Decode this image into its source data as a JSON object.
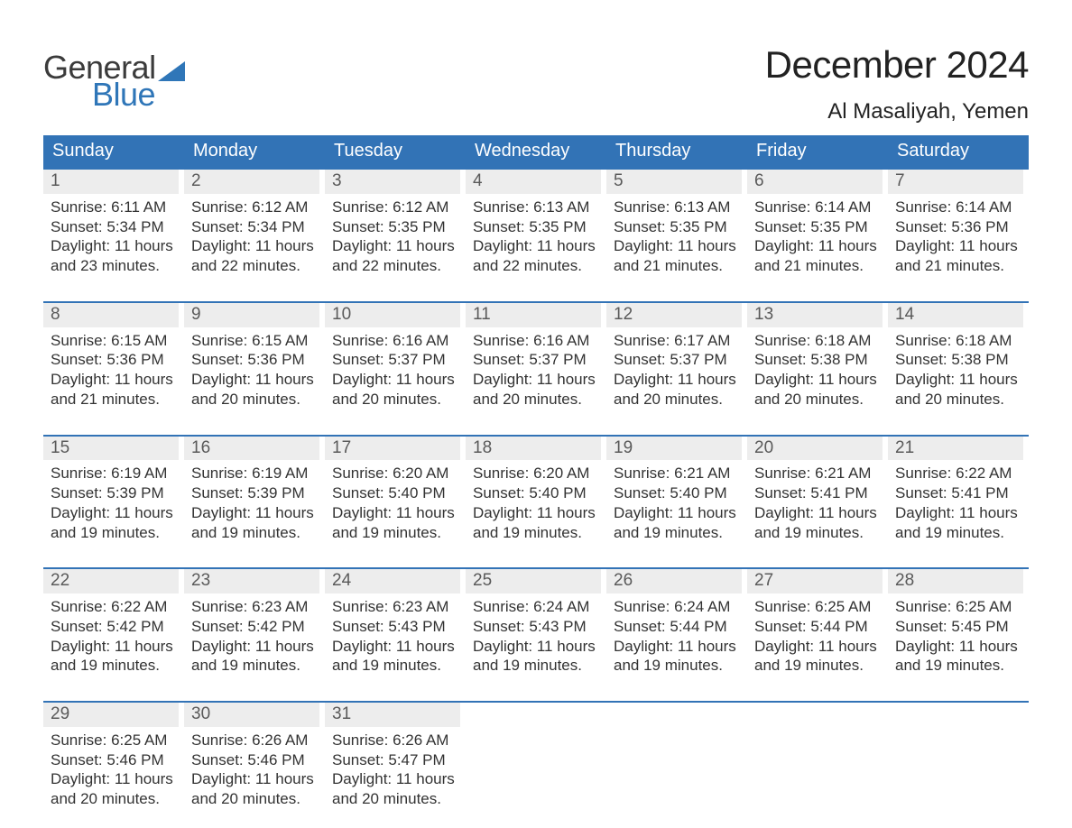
{
  "brand": {
    "word1": "General",
    "word2": "Blue",
    "word1_color": "#3b3b3b",
    "word2_color": "#2f76b8",
    "sail_color": "#2f76b8"
  },
  "title": "December 2024",
  "location": "Al Masaliyah, Yemen",
  "header_bg": "#3273b6",
  "header_text_color": "#ffffff",
  "daynum_bg": "#ededed",
  "daynum_color": "#5a5a5a",
  "body_color": "#333333",
  "week_border_color": "#3273b6",
  "background_color": "#ffffff",
  "title_fontsize": 42,
  "location_fontsize": 24,
  "dow_fontsize": 20,
  "body_fontsize": 17,
  "day_headers": [
    "Sunday",
    "Monday",
    "Tuesday",
    "Wednesday",
    "Thursday",
    "Friday",
    "Saturday"
  ],
  "weeks": [
    [
      {
        "n": "1",
        "sunrise": "Sunrise: 6:11 AM",
        "sunset": "Sunset: 5:34 PM",
        "daylight": "Daylight: 11 hours and 23 minutes."
      },
      {
        "n": "2",
        "sunrise": "Sunrise: 6:12 AM",
        "sunset": "Sunset: 5:34 PM",
        "daylight": "Daylight: 11 hours and 22 minutes."
      },
      {
        "n": "3",
        "sunrise": "Sunrise: 6:12 AM",
        "sunset": "Sunset: 5:35 PM",
        "daylight": "Daylight: 11 hours and 22 minutes."
      },
      {
        "n": "4",
        "sunrise": "Sunrise: 6:13 AM",
        "sunset": "Sunset: 5:35 PM",
        "daylight": "Daylight: 11 hours and 22 minutes."
      },
      {
        "n": "5",
        "sunrise": "Sunrise: 6:13 AM",
        "sunset": "Sunset: 5:35 PM",
        "daylight": "Daylight: 11 hours and 21 minutes."
      },
      {
        "n": "6",
        "sunrise": "Sunrise: 6:14 AM",
        "sunset": "Sunset: 5:35 PM",
        "daylight": "Daylight: 11 hours and 21 minutes."
      },
      {
        "n": "7",
        "sunrise": "Sunrise: 6:14 AM",
        "sunset": "Sunset: 5:36 PM",
        "daylight": "Daylight: 11 hours and 21 minutes."
      }
    ],
    [
      {
        "n": "8",
        "sunrise": "Sunrise: 6:15 AM",
        "sunset": "Sunset: 5:36 PM",
        "daylight": "Daylight: 11 hours and 21 minutes."
      },
      {
        "n": "9",
        "sunrise": "Sunrise: 6:15 AM",
        "sunset": "Sunset: 5:36 PM",
        "daylight": "Daylight: 11 hours and 20 minutes."
      },
      {
        "n": "10",
        "sunrise": "Sunrise: 6:16 AM",
        "sunset": "Sunset: 5:37 PM",
        "daylight": "Daylight: 11 hours and 20 minutes."
      },
      {
        "n": "11",
        "sunrise": "Sunrise: 6:16 AM",
        "sunset": "Sunset: 5:37 PM",
        "daylight": "Daylight: 11 hours and 20 minutes."
      },
      {
        "n": "12",
        "sunrise": "Sunrise: 6:17 AM",
        "sunset": "Sunset: 5:37 PM",
        "daylight": "Daylight: 11 hours and 20 minutes."
      },
      {
        "n": "13",
        "sunrise": "Sunrise: 6:18 AM",
        "sunset": "Sunset: 5:38 PM",
        "daylight": "Daylight: 11 hours and 20 minutes."
      },
      {
        "n": "14",
        "sunrise": "Sunrise: 6:18 AM",
        "sunset": "Sunset: 5:38 PM",
        "daylight": "Daylight: 11 hours and 20 minutes."
      }
    ],
    [
      {
        "n": "15",
        "sunrise": "Sunrise: 6:19 AM",
        "sunset": "Sunset: 5:39 PM",
        "daylight": "Daylight: 11 hours and 19 minutes."
      },
      {
        "n": "16",
        "sunrise": "Sunrise: 6:19 AM",
        "sunset": "Sunset: 5:39 PM",
        "daylight": "Daylight: 11 hours and 19 minutes."
      },
      {
        "n": "17",
        "sunrise": "Sunrise: 6:20 AM",
        "sunset": "Sunset: 5:40 PM",
        "daylight": "Daylight: 11 hours and 19 minutes."
      },
      {
        "n": "18",
        "sunrise": "Sunrise: 6:20 AM",
        "sunset": "Sunset: 5:40 PM",
        "daylight": "Daylight: 11 hours and 19 minutes."
      },
      {
        "n": "19",
        "sunrise": "Sunrise: 6:21 AM",
        "sunset": "Sunset: 5:40 PM",
        "daylight": "Daylight: 11 hours and 19 minutes."
      },
      {
        "n": "20",
        "sunrise": "Sunrise: 6:21 AM",
        "sunset": "Sunset: 5:41 PM",
        "daylight": "Daylight: 11 hours and 19 minutes."
      },
      {
        "n": "21",
        "sunrise": "Sunrise: 6:22 AM",
        "sunset": "Sunset: 5:41 PM",
        "daylight": "Daylight: 11 hours and 19 minutes."
      }
    ],
    [
      {
        "n": "22",
        "sunrise": "Sunrise: 6:22 AM",
        "sunset": "Sunset: 5:42 PM",
        "daylight": "Daylight: 11 hours and 19 minutes."
      },
      {
        "n": "23",
        "sunrise": "Sunrise: 6:23 AM",
        "sunset": "Sunset: 5:42 PM",
        "daylight": "Daylight: 11 hours and 19 minutes."
      },
      {
        "n": "24",
        "sunrise": "Sunrise: 6:23 AM",
        "sunset": "Sunset: 5:43 PM",
        "daylight": "Daylight: 11 hours and 19 minutes."
      },
      {
        "n": "25",
        "sunrise": "Sunrise: 6:24 AM",
        "sunset": "Sunset: 5:43 PM",
        "daylight": "Daylight: 11 hours and 19 minutes."
      },
      {
        "n": "26",
        "sunrise": "Sunrise: 6:24 AM",
        "sunset": "Sunset: 5:44 PM",
        "daylight": "Daylight: 11 hours and 19 minutes."
      },
      {
        "n": "27",
        "sunrise": "Sunrise: 6:25 AM",
        "sunset": "Sunset: 5:44 PM",
        "daylight": "Daylight: 11 hours and 19 minutes."
      },
      {
        "n": "28",
        "sunrise": "Sunrise: 6:25 AM",
        "sunset": "Sunset: 5:45 PM",
        "daylight": "Daylight: 11 hours and 19 minutes."
      }
    ],
    [
      {
        "n": "29",
        "sunrise": "Sunrise: 6:25 AM",
        "sunset": "Sunset: 5:46 PM",
        "daylight": "Daylight: 11 hours and 20 minutes."
      },
      {
        "n": "30",
        "sunrise": "Sunrise: 6:26 AM",
        "sunset": "Sunset: 5:46 PM",
        "daylight": "Daylight: 11 hours and 20 minutes."
      },
      {
        "n": "31",
        "sunrise": "Sunrise: 6:26 AM",
        "sunset": "Sunset: 5:47 PM",
        "daylight": "Daylight: 11 hours and 20 minutes."
      },
      {
        "n": "",
        "sunrise": "",
        "sunset": "",
        "daylight": ""
      },
      {
        "n": "",
        "sunrise": "",
        "sunset": "",
        "daylight": ""
      },
      {
        "n": "",
        "sunrise": "",
        "sunset": "",
        "daylight": ""
      },
      {
        "n": "",
        "sunrise": "",
        "sunset": "",
        "daylight": ""
      }
    ]
  ]
}
